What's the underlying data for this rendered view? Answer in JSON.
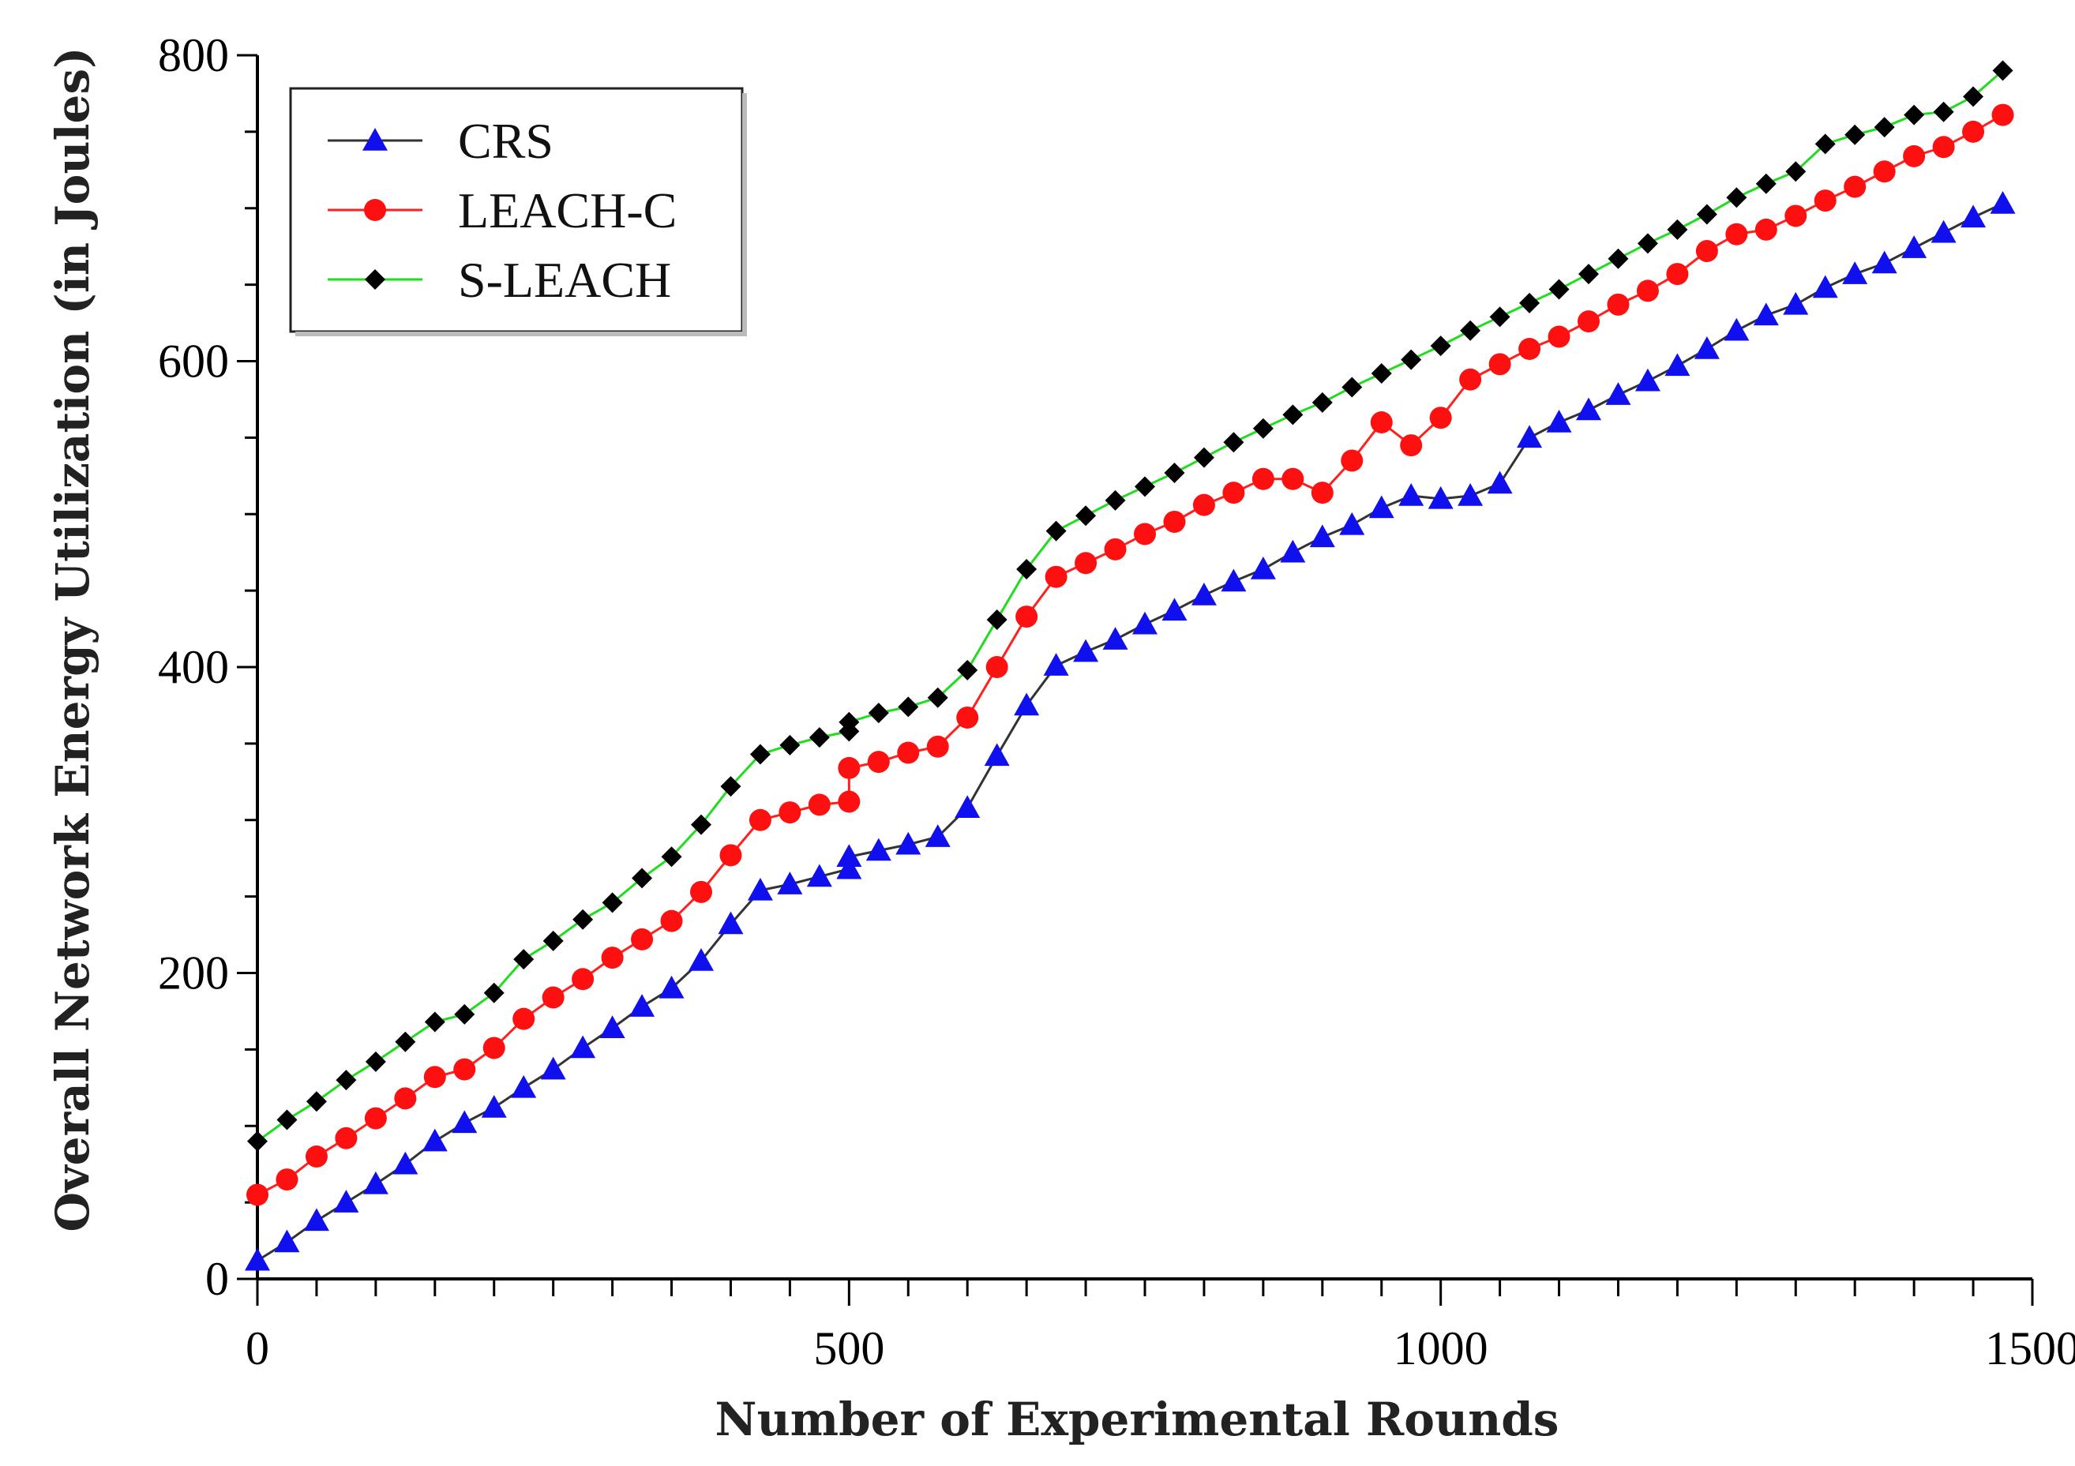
{
  "chart_data": {
    "type": "line",
    "title": "",
    "xlabel": "Number of Experimental Rounds",
    "ylabel": "Overall Network Energy Utilization (in Joules)",
    "xlim": [
      0,
      1500
    ],
    "ylim": [
      0,
      800
    ],
    "x_tick_labels": [
      "0",
      "500",
      "1000",
      "1500"
    ],
    "x_tick_values": [
      0,
      500,
      1000,
      1500
    ],
    "y_tick_labels": [
      "0",
      "200",
      "400",
      "600",
      "800"
    ],
    "y_tick_values": [
      0,
      200,
      400,
      600,
      800
    ],
    "legend_position": "top-left",
    "grid": false,
    "series": [
      {
        "name": "CRS",
        "line_color": "#333333",
        "marker_color": "#1010ee",
        "marker": "triangle",
        "x": [
          0,
          25,
          50,
          75,
          100,
          125,
          150,
          175,
          200,
          225,
          250,
          275,
          300,
          325,
          350,
          375,
          400,
          425,
          450,
          475,
          500,
          500,
          525,
          550,
          575,
          600,
          625,
          650,
          675,
          700,
          725,
          750,
          775,
          800,
          825,
          850,
          875,
          900,
          925,
          950,
          975,
          1000,
          1025,
          1050,
          1075,
          1100,
          1125,
          1150,
          1175,
          1200,
          1225,
          1250,
          1275,
          1300,
          1325,
          1350,
          1375,
          1400,
          1425,
          1450,
          1475
        ],
        "values": [
          12,
          24,
          38,
          50,
          62,
          75,
          90,
          102,
          112,
          125,
          137,
          151,
          164,
          178,
          190,
          208,
          232,
          254,
          258,
          263,
          268,
          276,
          280,
          284,
          289,
          308,
          342,
          375,
          401,
          410,
          418,
          428,
          437,
          447,
          456,
          464,
          475,
          485,
          493,
          504,
          512,
          510,
          512,
          520,
          550,
          560,
          568,
          578,
          587,
          597,
          608,
          620,
          630,
          637,
          648,
          657,
          664,
          674,
          684,
          694,
          703
        ]
      },
      {
        "name": "LEACH-C",
        "line_color": "#ff2020",
        "marker_color": "#ff1010",
        "marker": "circle",
        "x": [
          0,
          25,
          50,
          75,
          100,
          125,
          150,
          175,
          200,
          225,
          250,
          275,
          300,
          325,
          350,
          375,
          400,
          425,
          450,
          475,
          500,
          500,
          525,
          550,
          575,
          600,
          625,
          650,
          675,
          700,
          725,
          750,
          775,
          800,
          825,
          850,
          875,
          900,
          925,
          950,
          975,
          1000,
          1025,
          1050,
          1075,
          1100,
          1125,
          1150,
          1175,
          1200,
          1225,
          1250,
          1275,
          1300,
          1325,
          1350,
          1375,
          1400,
          1425,
          1450,
          1475
        ],
        "values": [
          55,
          65,
          80,
          92,
          105,
          118,
          132,
          137,
          151,
          170,
          184,
          196,
          210,
          222,
          234,
          253,
          277,
          300,
          305,
          310,
          312,
          334,
          338,
          344,
          348,
          367,
          400,
          433,
          459,
          468,
          477,
          487,
          495,
          506,
          514,
          523,
          523,
          514,
          535,
          560,
          545,
          563,
          588,
          598,
          608,
          616,
          626,
          637,
          646,
          657,
          672,
          683,
          686,
          695,
          705,
          714,
          724,
          734,
          740,
          750,
          761
        ]
      },
      {
        "name": "S-LEACH",
        "line_color": "#20dd20",
        "marker_color": "#000000",
        "marker": "diamond",
        "x": [
          0,
          25,
          50,
          75,
          100,
          125,
          150,
          175,
          200,
          225,
          250,
          275,
          300,
          325,
          350,
          375,
          400,
          425,
          450,
          475,
          500,
          500,
          525,
          550,
          575,
          600,
          625,
          650,
          675,
          700,
          725,
          750,
          775,
          800,
          825,
          850,
          875,
          900,
          925,
          950,
          975,
          1000,
          1025,
          1050,
          1075,
          1100,
          1125,
          1150,
          1175,
          1200,
          1225,
          1250,
          1275,
          1300,
          1325,
          1350,
          1375,
          1400,
          1425,
          1450,
          1475
        ],
        "values": [
          90,
          104,
          116,
          130,
          142,
          155,
          168,
          173,
          187,
          209,
          221,
          235,
          246,
          262,
          276,
          297,
          322,
          343,
          349,
          354,
          358,
          364,
          370,
          374,
          380,
          398,
          431,
          464,
          489,
          499,
          509,
          518,
          527,
          537,
          547,
          556,
          565,
          573,
          583,
          592,
          601,
          610,
          620,
          629,
          638,
          647,
          657,
          667,
          677,
          686,
          696,
          707,
          716,
          724,
          742,
          748,
          753,
          761,
          763,
          773,
          790
        ]
      }
    ]
  }
}
